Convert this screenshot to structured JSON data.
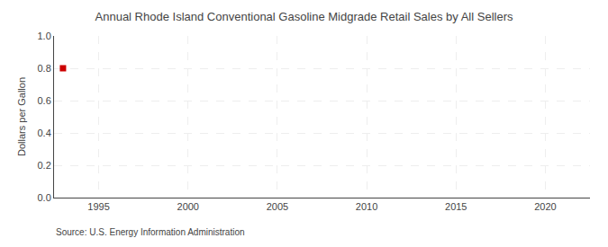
{
  "chart_data": {
    "type": "scatter",
    "title": "Annual Rhode Island Conventional Gasoline Midgrade Retail Sales by All Sellers",
    "ylabel": "Dollars per Gallon",
    "source": "Source: U.S. Energy Information Administration",
    "x": [
      1993
    ],
    "values": [
      0.8
    ],
    "color": "#cc0000",
    "marker": "square",
    "xlim": [
      1992.5,
      2022.5
    ],
    "ylim": [
      0.0,
      1.0
    ],
    "xticks": [
      1995,
      2000,
      2005,
      2010,
      2015,
      2020
    ],
    "yticks": [
      {
        "value": 0.0,
        "label": "0.0"
      },
      0.2,
      0.4,
      0.6,
      0.8,
      {
        "value": 1.0,
        "label": "1.0"
      }
    ],
    "grid": true
  }
}
